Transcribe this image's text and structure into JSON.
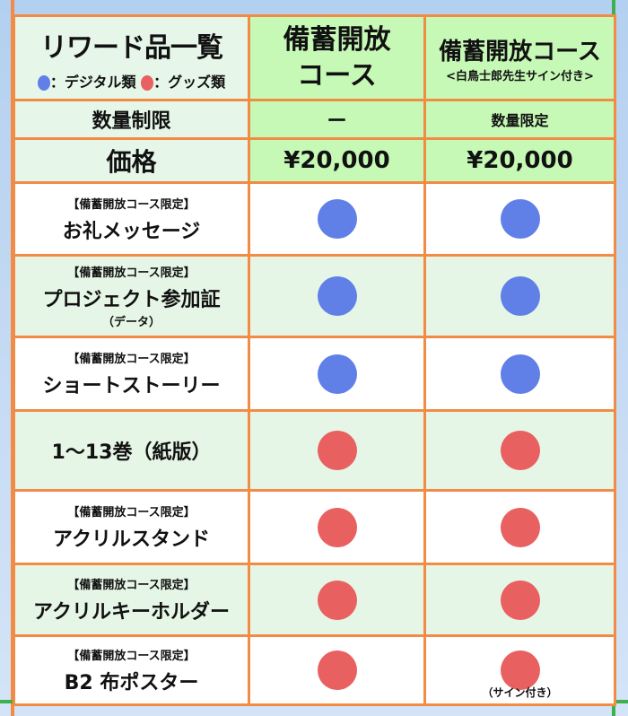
{
  "colors": {
    "digital": "#6080e8",
    "goods": "#e86060",
    "border": "#f28c45",
    "frame_green": "#3cb04a"
  },
  "header": {
    "title": "リワード品一覧",
    "legend_digital": "：デジタル類",
    "legend_goods": "：グッズ類",
    "course1": "備蓄開放",
    "course1_line2": "コース",
    "course2": "備蓄開放コース",
    "course2_sub": "<白鳥士郎先生サイン付き>"
  },
  "quantity": {
    "label": "数量制限",
    "course1": "ー",
    "course2": "数量限定"
  },
  "price": {
    "label": "価格",
    "course1": "¥20,000",
    "course2": "¥20,000"
  },
  "items": [
    {
      "tag": "【備蓄開放コース限定】",
      "name": "お礼メッセージ",
      "note": "",
      "type": "digital",
      "course1": true,
      "course2": true,
      "course2_note": ""
    },
    {
      "tag": "【備蓄開放コース限定】",
      "name": "プロジェクト参加証",
      "note": "（データ）",
      "type": "digital",
      "course1": true,
      "course2": true,
      "course2_note": ""
    },
    {
      "tag": "【備蓄開放コース限定】",
      "name": "ショートストーリー",
      "note": "",
      "type": "digital",
      "course1": true,
      "course2": true,
      "course2_note": ""
    },
    {
      "tag": "",
      "name": "1～13巻（紙版）",
      "note": "",
      "type": "goods",
      "course1": true,
      "course2": true,
      "course2_note": ""
    },
    {
      "tag": "【備蓄開放コース限定】",
      "name": "アクリルスタンド",
      "note": "",
      "type": "goods",
      "course1": true,
      "course2": true,
      "course2_note": ""
    },
    {
      "tag": "【備蓄開放コース限定】",
      "name": "アクリルキーホルダー",
      "note": "",
      "type": "goods",
      "course1": true,
      "course2": true,
      "course2_note": ""
    },
    {
      "tag": "【備蓄開放コース限定】",
      "name": "B2 布ポスター",
      "note": "",
      "type": "goods",
      "course1": true,
      "course2": true,
      "course2_note": "（サイン付き）"
    }
  ]
}
